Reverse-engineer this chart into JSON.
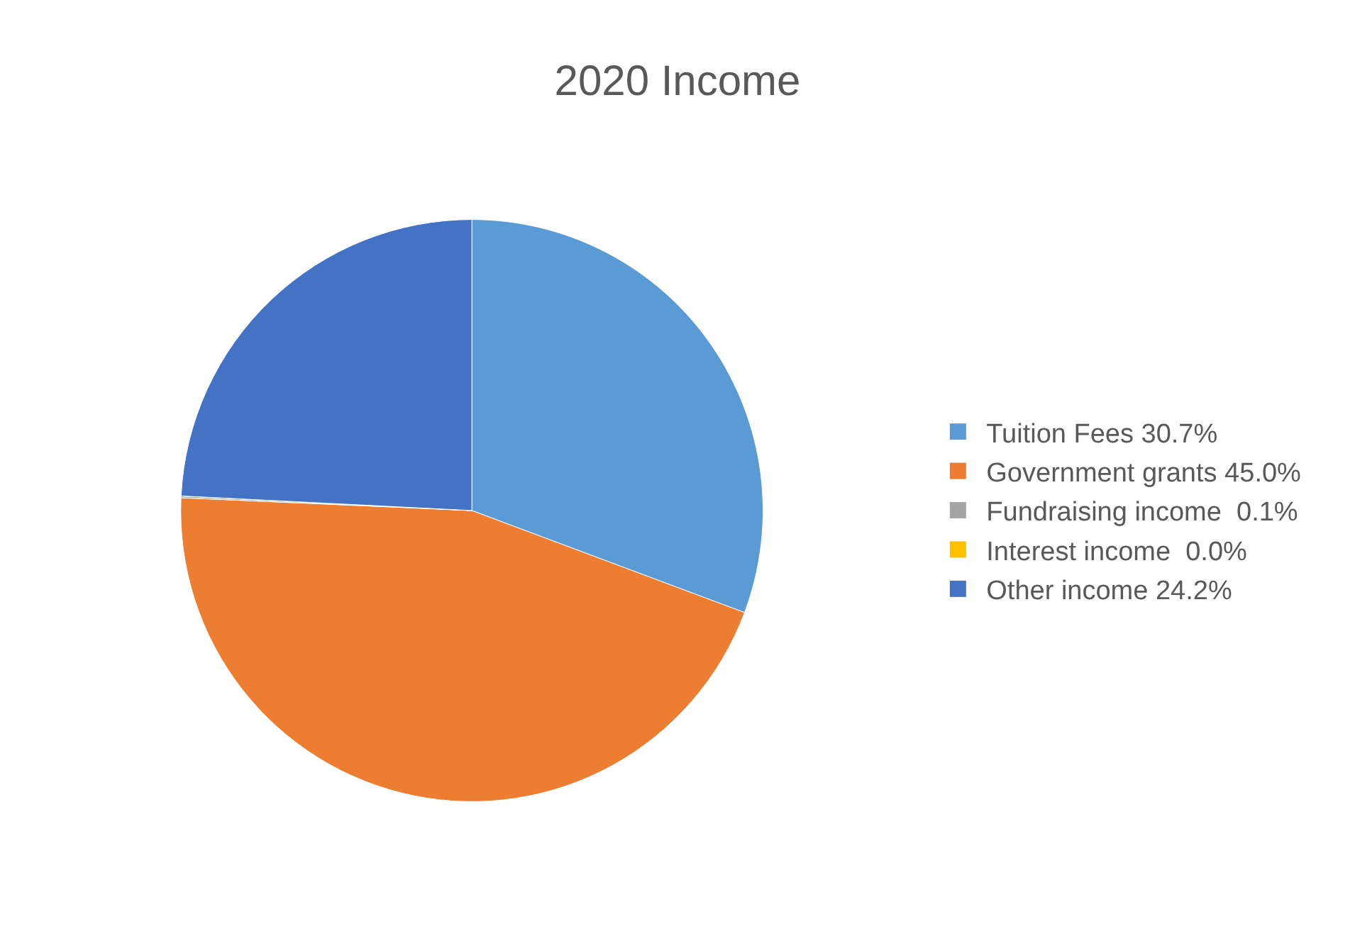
{
  "chart_data": {
    "type": "pie",
    "title": "2020 Income",
    "categories": [
      "Tuition Fees 30.7%",
      "Government grants 45.0%",
      "Fundraising income  0.1%",
      "Interest income  0.0%",
      "Other income 24.2%"
    ],
    "values": [
      30.7,
      45.0,
      0.1,
      0.0,
      24.2
    ],
    "colors": [
      "#5b9bd5",
      "#ed7d31",
      "#a5a5a5",
      "#ffc000",
      "#4472c4"
    ],
    "legend": "right"
  }
}
